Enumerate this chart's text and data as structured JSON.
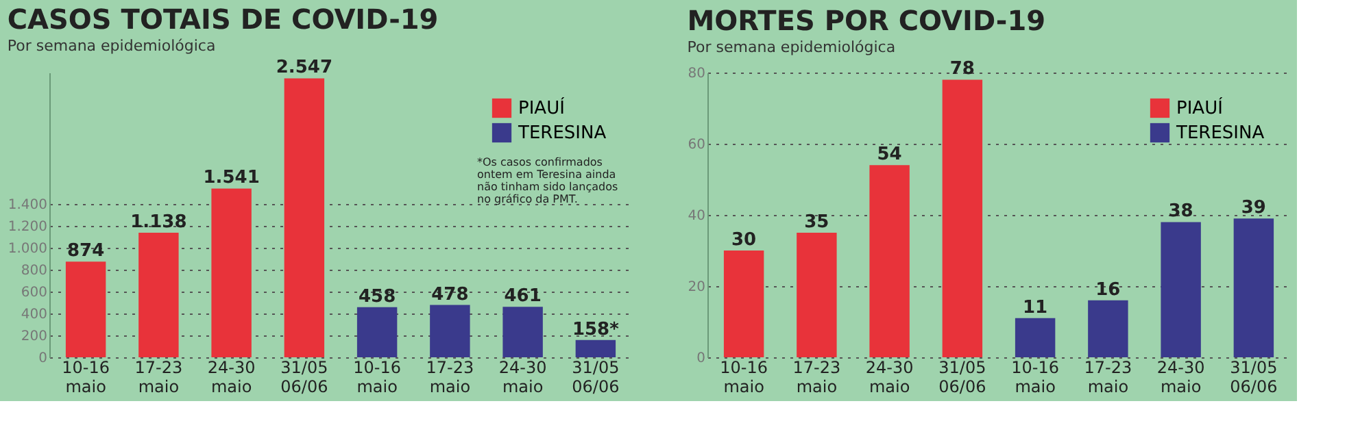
{
  "chart_data": [
    {
      "type": "bar",
      "title": "CASOS TOTAIS DE COVID-19",
      "subtitle": "Por semana epidemiológica",
      "categories": [
        "10-16 maio",
        "17-23 maio",
        "24-30 maio",
        "31/05 06/06",
        "10-16 maio",
        "17-23 maio",
        "24-30 maio",
        "31/05 06/06"
      ],
      "series": [
        {
          "name": "PIAUÍ",
          "color": "#e8333a",
          "values": [
            874,
            1138,
            1541,
            2547,
            null,
            null,
            null,
            null
          ],
          "value_labels": [
            "874",
            "1.138",
            "1.541",
            "2.547",
            null,
            null,
            null,
            null
          ]
        },
        {
          "name": "TERESINA",
          "color": "#3a3a8c",
          "values": [
            null,
            null,
            null,
            null,
            458,
            478,
            461,
            158
          ],
          "value_labels": [
            null,
            null,
            null,
            null,
            "458",
            "478",
            "461",
            "158*"
          ]
        }
      ],
      "ylim": [
        0,
        2600
      ],
      "yticks": [
        0,
        {
          "value": 200,
          "label": "200"
        },
        {
          "value": 400,
          "label": "400"
        },
        {
          "value": 600,
          "label": "600"
        },
        {
          "value": 800,
          "label": "800"
        },
        {
          "value": 1000,
          "label": "1.000"
        },
        {
          "value": 1200,
          "label": "1.200"
        },
        {
          "value": 1400,
          "label": "1.400"
        }
      ],
      "grid": "y",
      "legend": "top right",
      "annotations": [
        "*Os casos confirmados ontem em Teresina ainda não tinham sido lançados no gráfico da PMT."
      ]
    },
    {
      "type": "bar",
      "title": "MORTES POR COVID-19",
      "subtitle": "Por semana epidemiológica",
      "categories": [
        "10-16 maio",
        "17-23 maio",
        "24-30 maio",
        "31/05 06/06",
        "10-16 maio",
        "17-23 maio",
        "24-30 maio",
        "31/05 06/06"
      ],
      "series": [
        {
          "name": "PIAUÍ",
          "color": "#e8333a",
          "values": [
            30,
            35,
            54,
            78,
            null,
            null,
            null,
            null
          ]
        },
        {
          "name": "TERESINA",
          "color": "#3a3a8c",
          "values": [
            null,
            null,
            null,
            null,
            11,
            16,
            38,
            39
          ]
        }
      ],
      "ylim": [
        0,
        80
      ],
      "yticks": [
        0,
        20,
        40,
        60,
        80
      ],
      "grid": "y",
      "legend": "top right",
      "data_labels": true
    }
  ]
}
